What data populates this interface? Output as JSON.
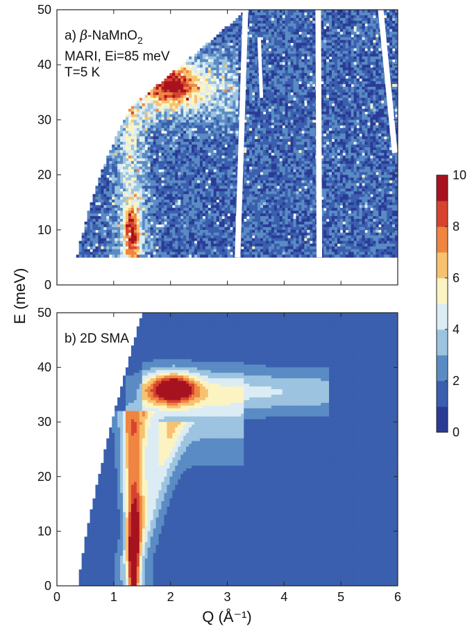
{
  "figure": {
    "ylabel": "E (meV)",
    "xlabel": "Q (Å⁻¹)",
    "colorbar": {
      "ticks": [
        "0",
        "2",
        "4",
        "6",
        "8",
        "10"
      ],
      "range": [
        0,
        10
      ],
      "levels": 10,
      "colors": [
        "#2a3b96",
        "#3a5fae",
        "#5a8bc4",
        "#9cc4e0",
        "#dcecf4",
        "#fbf4c2",
        "#f7c270",
        "#ef8540",
        "#d64430",
        "#a7121f"
      ]
    }
  },
  "chart_data": [
    {
      "type": "heatmap",
      "panel": "a",
      "label_prefix": "a) ",
      "label_symbol": "β",
      "label_compound": "-NaMnO",
      "label_subscript": "2",
      "annotation_lines": [
        "MARI, Ei=85 meV",
        "T=5 K"
      ],
      "xlim": [
        0,
        6
      ],
      "ylim": [
        0,
        50
      ],
      "xticks": [
        "0",
        "1",
        "2",
        "3",
        "4",
        "5",
        "6"
      ],
      "yticks": [
        "0",
        "10",
        "20",
        "30",
        "40",
        "50"
      ],
      "show_xticklabels": false,
      "background_intensity": 1.5,
      "features": [
        {
          "name": "flat band",
          "Q_range": [
            1.4,
            3.2
          ],
          "E": 36,
          "intensity_peak": 8.5
        },
        {
          "name": "dispersive mode",
          "Q_center": 1.3,
          "E_range": [
            5,
            30
          ],
          "intensity_peak": 7.5
        }
      ]
    },
    {
      "type": "heatmap",
      "panel": "b",
      "label": "b) 2D SMA",
      "xlim": [
        0,
        6
      ],
      "ylim": [
        0,
        50
      ],
      "xticks": [
        "0",
        "1",
        "2",
        "3",
        "4",
        "5",
        "6"
      ],
      "yticks": [
        "0",
        "10",
        "20",
        "30",
        "40",
        "50"
      ],
      "show_xticklabels": true,
      "background_intensity": 1.5,
      "features": [
        {
          "name": "flat band",
          "Q_range": [
            1.4,
            4.8
          ],
          "E": 36,
          "intensity_peak": 9
        },
        {
          "name": "dispersive mode",
          "Q_center": 1.35,
          "E_range": [
            0,
            30
          ],
          "intensity_peak": 9
        }
      ]
    }
  ]
}
